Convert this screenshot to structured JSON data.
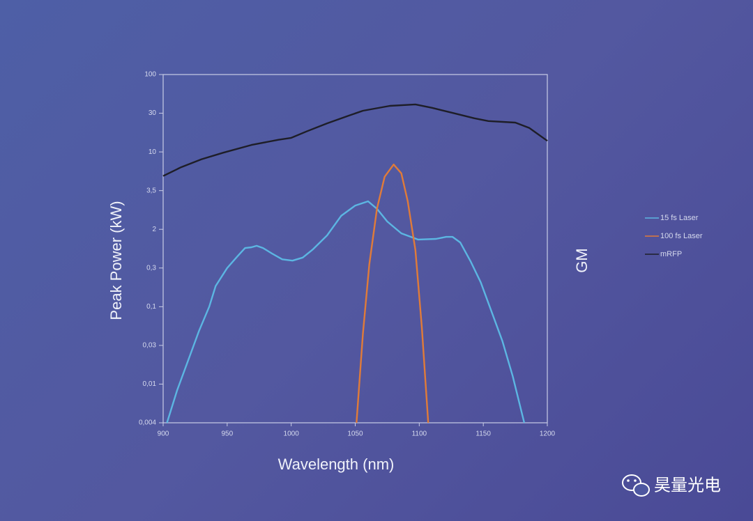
{
  "chart_data": {
    "type": "line",
    "y_label": "Peak Power (kW)",
    "x_label": "Wavelength (nm)",
    "y2_label": "GM",
    "log": true,
    "grid": false,
    "legend": "right",
    "xlim": [
      900,
      1200
    ],
    "xticks": [
      900,
      950,
      1000,
      1050,
      1100,
      1150,
      1200
    ],
    "ylim": [
      0.004,
      100
    ],
    "yticks": [
      100,
      30,
      10,
      {
        "value": 3.5,
        "label": "3,5"
      },
      2,
      {
        "value": 0.3,
        "label": "0,3"
      },
      {
        "value": 0.1,
        "label": "0,1"
      },
      {
        "value": 0.03,
        "label": "0,03"
      },
      {
        "value": 0.01,
        "label": "0,01"
      },
      {
        "value": 0.004,
        "label": "0,004"
      }
    ],
    "series": [
      {
        "name": "15 fs Laser",
        "color": "#5cb6e2",
        "x": [
          903,
          911,
          919,
          928,
          936,
          941,
          950,
          958,
          964,
          969,
          973,
          978,
          985,
          993,
          1001,
          1009,
          1017,
          1028,
          1039,
          1050,
          1060,
          1067,
          1075,
          1086,
          1099,
          1113,
          1121,
          1126,
          1132,
          1140,
          1148,
          1156,
          1165,
          1173,
          1182
        ],
        "values": [
          0.004,
          0.0087,
          0.0186,
          0.047,
          0.1,
          0.18,
          0.3,
          0.53,
          0.8,
          0.83,
          0.89,
          0.8,
          0.61,
          0.46,
          0.43,
          0.5,
          0.75,
          1.48,
          2.43,
          2.82,
          3.0,
          2.69,
          2.24,
          1.64,
          1.21,
          1.25,
          1.38,
          1.38,
          1.05,
          0.42,
          0.2,
          0.09,
          0.034,
          0.0125,
          0.004
        ]
      },
      {
        "name": "100 fs Laser",
        "color": "#e07b39",
        "x": [
          1051,
          1056,
          1061,
          1067,
          1073,
          1080,
          1086,
          1091,
          1097,
          1102,
          1107
        ],
        "values": [
          0.004,
          0.043,
          0.36,
          2.7,
          5.1,
          7.1,
          5.6,
          3.0,
          0.72,
          0.053,
          0.004
        ]
      },
      {
        "name": "mRFP",
        "color": "#1e1e28",
        "x": [
          900,
          914,
          930,
          947,
          969,
          990,
          1000,
          1012,
          1028,
          1045,
          1056,
          1077,
          1097,
          1110,
          1126,
          1143,
          1154,
          1175,
          1186,
          1200
        ],
        "values": [
          5.2,
          6.6,
          8.2,
          9.8,
          12.2,
          14.1,
          14.9,
          17.9,
          22.5,
          28,
          32.4,
          37.7,
          39.5,
          35.5,
          30.3,
          26,
          24,
          23,
          19.7,
          13.7
        ]
      }
    ],
    "watermark": "昊量光电"
  }
}
